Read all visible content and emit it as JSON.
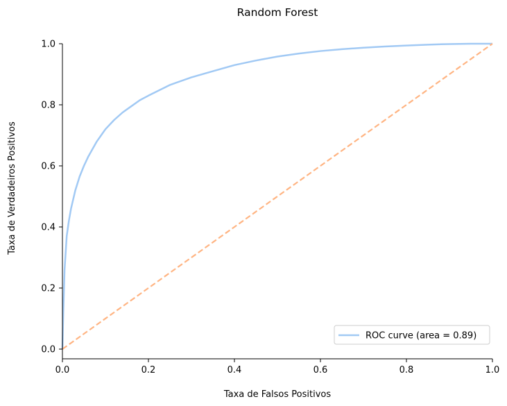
{
  "chart_data": {
    "type": "line",
    "title": "Random Forest",
    "xlabel": "Taxa de Falsos Positivos",
    "ylabel": "Taxa de Verdadeiros Positivos",
    "xlim": [
      0.0,
      1.0
    ],
    "ylim": [
      0.0,
      1.0
    ],
    "xticks": [
      0.0,
      0.2,
      0.4,
      0.6,
      0.8,
      1.0
    ],
    "xtick_labels": [
      "0.0",
      "0.2",
      "0.4",
      "0.6",
      "0.8",
      "1.0"
    ],
    "yticks": [
      0.0,
      0.2,
      0.4,
      0.6,
      0.8,
      1.0
    ],
    "ytick_labels": [
      "0.0",
      "0.2",
      "0.4",
      "0.6",
      "0.8",
      "1.0"
    ],
    "grid": false,
    "legend_position": "lower-right",
    "series": [
      {
        "name": "ROC curve (area = 0.89)",
        "color": "#a1c9f4",
        "style": "solid",
        "x": [
          0.0,
          0.002,
          0.005,
          0.01,
          0.015,
          0.02,
          0.03,
          0.04,
          0.05,
          0.06,
          0.07,
          0.08,
          0.09,
          0.1,
          0.12,
          0.14,
          0.16,
          0.18,
          0.2,
          0.25,
          0.3,
          0.35,
          0.4,
          0.45,
          0.5,
          0.55,
          0.6,
          0.65,
          0.7,
          0.75,
          0.8,
          0.85,
          0.9,
          0.95,
          1.0
        ],
        "y": [
          0.0,
          0.12,
          0.26,
          0.37,
          0.42,
          0.46,
          0.52,
          0.565,
          0.6,
          0.63,
          0.655,
          0.68,
          0.7,
          0.72,
          0.75,
          0.775,
          0.795,
          0.815,
          0.83,
          0.865,
          0.89,
          0.91,
          0.93,
          0.945,
          0.958,
          0.968,
          0.976,
          0.982,
          0.987,
          0.991,
          0.994,
          0.997,
          0.999,
          1.0,
          1.0
        ]
      },
      {
        "name": "",
        "color": "#ffb482",
        "style": "dashed",
        "x": [
          0.0,
          1.0
        ],
        "y": [
          0.0,
          1.0
        ]
      }
    ]
  }
}
